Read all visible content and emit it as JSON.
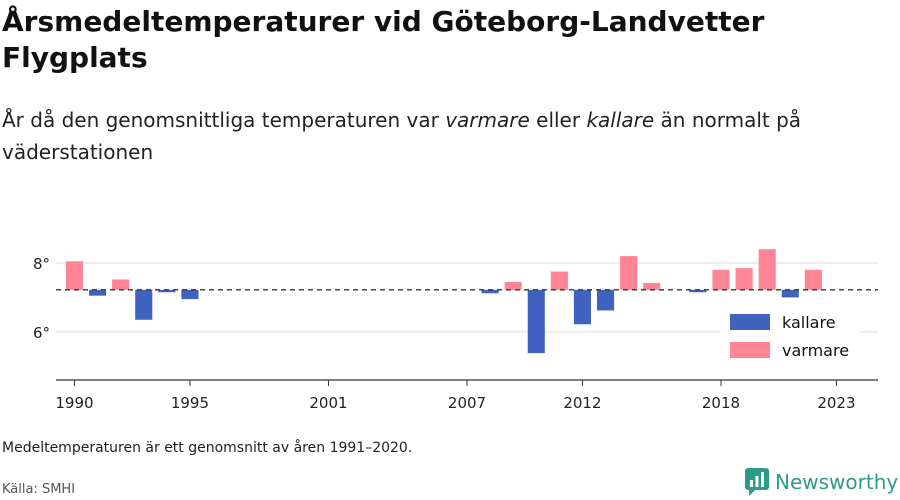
{
  "title": "Årsmedeltemperaturer vid Göteborg-Landvetter Flygplats",
  "subtitle": {
    "part1": "År då den genomsnittliga temperaturen var ",
    "warm_word": "varmare",
    "part2": " eller ",
    "cold_word": "kallare",
    "part3": " än normalt på väderstationen"
  },
  "note": "Medeltemperaturen är ett genomsnitt av åren 1991–2020.",
  "source": "Källa: SMHI",
  "brand": {
    "name": "Newsworthy",
    "icon": "newsworthy-logo-icon",
    "color": "#2f9a8a"
  },
  "colors": {
    "kallare": "#4063c0",
    "varmare": "#ff8595",
    "grid": "#dddddd",
    "axis": "#333333",
    "baseline": "#333333"
  },
  "chart_data": {
    "type": "bar",
    "baseline": 7.22,
    "baseline_style": "dashed",
    "ylim": [
      4.6,
      8.9
    ],
    "yticks": [
      {
        "value": 6,
        "label": "6°"
      },
      {
        "value": 8,
        "label": "8°"
      }
    ],
    "xlim": [
      1989.2,
      2024.8
    ],
    "xticks": [
      {
        "value": 1990,
        "label": "1990"
      },
      {
        "value": 1995,
        "label": "1995"
      },
      {
        "value": 2001,
        "label": "2001"
      },
      {
        "value": 2007,
        "label": "2007"
      },
      {
        "value": 2012,
        "label": "2012"
      },
      {
        "value": 2018,
        "label": "2018"
      },
      {
        "value": 2023,
        "label": "2023"
      }
    ],
    "grid": true,
    "legend": {
      "placement": "right",
      "items": [
        {
          "key": "kallare",
          "label": "kallare"
        },
        {
          "key": "varmare",
          "label": "varmare"
        }
      ]
    },
    "x": [
      1990,
      1991,
      1992,
      1993,
      1994,
      1995,
      2008,
      2009,
      2010,
      2011,
      2012,
      2013,
      2014,
      2015,
      2017,
      2018,
      2019,
      2020,
      2021,
      2022
    ],
    "values": [
      8.05,
      7.05,
      7.52,
      6.35,
      7.15,
      6.95,
      7.12,
      7.45,
      5.38,
      7.75,
      6.22,
      6.62,
      8.2,
      7.42,
      7.15,
      7.8,
      7.85,
      8.4,
      7.0,
      7.8
    ]
  }
}
